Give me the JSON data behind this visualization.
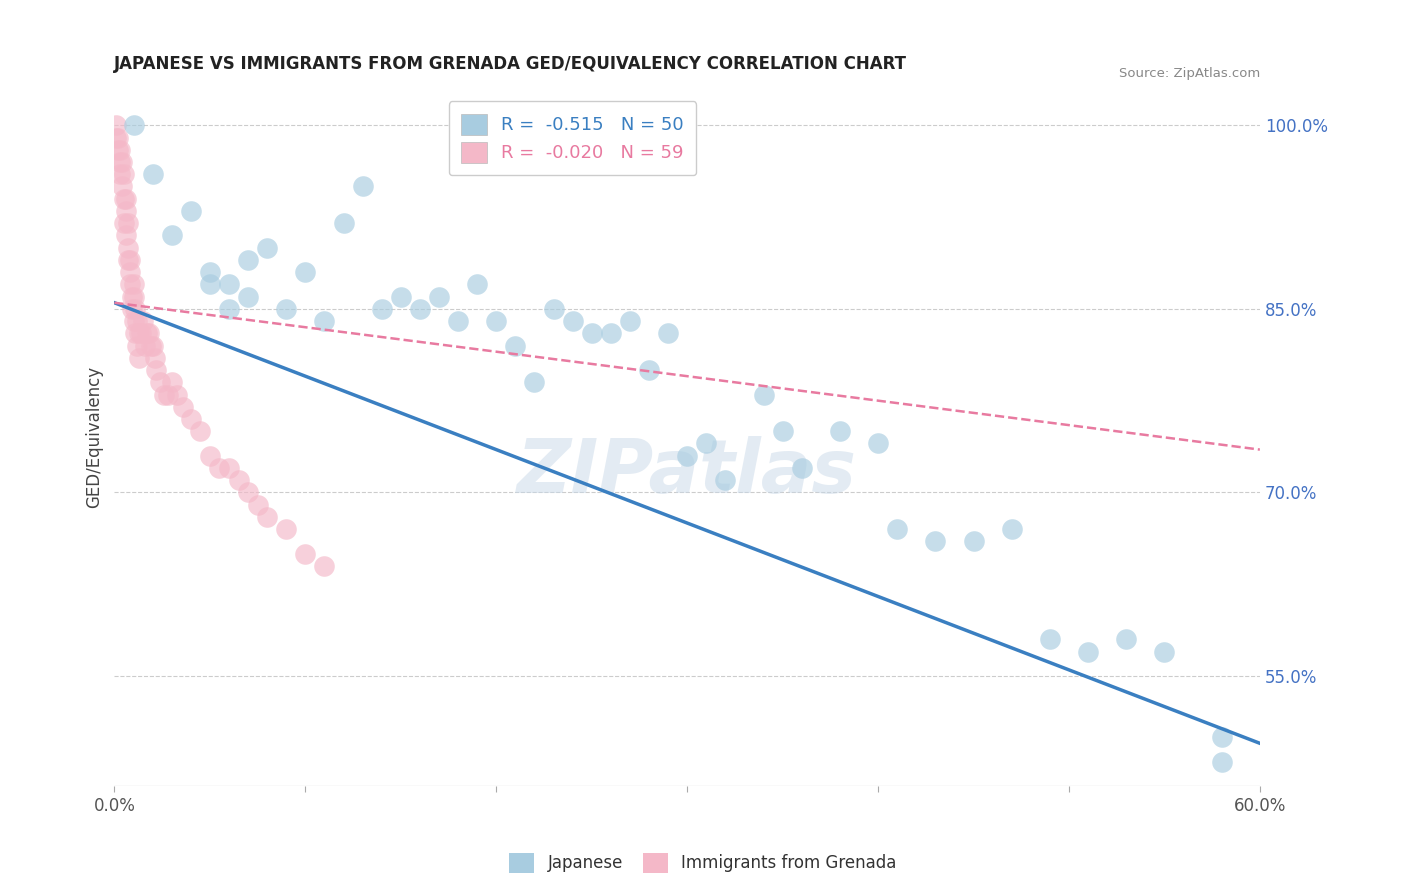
{
  "title": "JAPANESE VS IMMIGRANTS FROM GRENADA GED/EQUIVALENCY CORRELATION CHART",
  "source": "Source: ZipAtlas.com",
  "ylabel": "GED/Equivalency",
  "x_min": 0.0,
  "x_max": 0.6,
  "y_min": 0.46,
  "y_max": 1.03,
  "y_ticks": [
    0.55,
    0.7,
    0.85,
    1.0
  ],
  "y_tick_labels": [
    "55.0%",
    "70.0%",
    "85.0%",
    "100.0%"
  ],
  "blue_color": "#a8cce0",
  "pink_color": "#f4b8c8",
  "blue_line_color": "#3a7fc1",
  "pink_line_color": "#e87aa0",
  "legend_blue_R": "-0.515",
  "legend_blue_N": "50",
  "legend_pink_R": "-0.020",
  "legend_pink_N": "59",
  "legend_label_blue": "Japanese",
  "legend_label_pink": "Immigrants from Grenada",
  "watermark": "ZIPatlas",
  "blue_line_x0": 0.0,
  "blue_line_y0": 0.855,
  "blue_line_x1": 0.6,
  "blue_line_y1": 0.495,
  "pink_line_x0": 0.0,
  "pink_line_y0": 0.855,
  "pink_line_x1": 0.6,
  "pink_line_y1": 0.735,
  "blue_scatter_x": [
    0.01,
    0.02,
    0.03,
    0.04,
    0.05,
    0.05,
    0.06,
    0.06,
    0.07,
    0.07,
    0.08,
    0.09,
    0.1,
    0.11,
    0.12,
    0.13,
    0.14,
    0.15,
    0.16,
    0.17,
    0.18,
    0.19,
    0.2,
    0.21,
    0.22,
    0.23,
    0.24,
    0.25,
    0.26,
    0.27,
    0.28,
    0.29,
    0.3,
    0.31,
    0.32,
    0.34,
    0.35,
    0.36,
    0.38,
    0.4,
    0.41,
    0.43,
    0.45,
    0.47,
    0.49,
    0.51,
    0.53,
    0.55,
    0.58,
    0.58
  ],
  "blue_scatter_y": [
    1.0,
    0.96,
    0.91,
    0.93,
    0.87,
    0.88,
    0.87,
    0.85,
    0.89,
    0.86,
    0.9,
    0.85,
    0.88,
    0.84,
    0.92,
    0.95,
    0.85,
    0.86,
    0.85,
    0.86,
    0.84,
    0.87,
    0.84,
    0.82,
    0.79,
    0.85,
    0.84,
    0.83,
    0.83,
    0.84,
    0.8,
    0.83,
    0.73,
    0.74,
    0.71,
    0.78,
    0.75,
    0.72,
    0.75,
    0.74,
    0.67,
    0.66,
    0.66,
    0.67,
    0.58,
    0.57,
    0.58,
    0.57,
    0.5,
    0.48
  ],
  "pink_scatter_x": [
    0.001,
    0.001,
    0.002,
    0.002,
    0.003,
    0.003,
    0.003,
    0.004,
    0.004,
    0.005,
    0.005,
    0.005,
    0.006,
    0.006,
    0.006,
    0.007,
    0.007,
    0.007,
    0.008,
    0.008,
    0.008,
    0.009,
    0.009,
    0.01,
    0.01,
    0.01,
    0.011,
    0.011,
    0.012,
    0.012,
    0.013,
    0.013,
    0.014,
    0.015,
    0.016,
    0.017,
    0.018,
    0.019,
    0.02,
    0.021,
    0.022,
    0.024,
    0.026,
    0.028,
    0.03,
    0.033,
    0.036,
    0.04,
    0.045,
    0.05,
    0.055,
    0.06,
    0.065,
    0.07,
    0.075,
    0.08,
    0.09,
    0.1,
    0.11
  ],
  "pink_scatter_y": [
    1.0,
    0.99,
    0.99,
    0.98,
    0.97,
    0.96,
    0.98,
    0.95,
    0.97,
    0.94,
    0.92,
    0.96,
    0.93,
    0.91,
    0.94,
    0.9,
    0.89,
    0.92,
    0.88,
    0.87,
    0.89,
    0.86,
    0.85,
    0.87,
    0.84,
    0.86,
    0.83,
    0.85,
    0.82,
    0.84,
    0.81,
    0.83,
    0.83,
    0.84,
    0.82,
    0.83,
    0.83,
    0.82,
    0.82,
    0.81,
    0.8,
    0.79,
    0.78,
    0.78,
    0.79,
    0.78,
    0.77,
    0.76,
    0.75,
    0.73,
    0.72,
    0.72,
    0.71,
    0.7,
    0.69,
    0.68,
    0.67,
    0.65,
    0.64
  ]
}
